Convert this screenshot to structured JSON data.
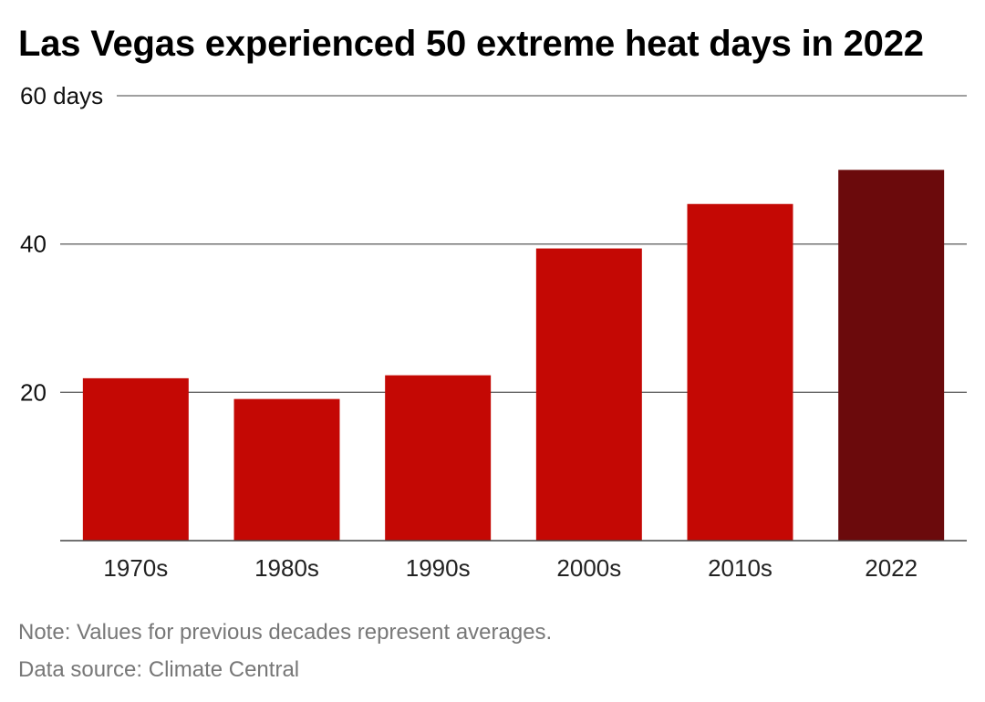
{
  "chart_data": {
    "type": "bar",
    "title": "Las Vegas experienced 50 extreme heat days in 2022",
    "categories": [
      "1970s",
      "1980s",
      "1990s",
      "2000s",
      "2010s",
      "2022"
    ],
    "series": [
      {
        "values": [
          21.9,
          19.1,
          22.3,
          39.4,
          45.4,
          50
        ]
      }
    ],
    "bar_colors": [
      "#c40804",
      "#c40804",
      "#c40804",
      "#c40804",
      "#c40804",
      "#6b0a0c"
    ],
    "ylim": [
      0,
      60
    ],
    "y_ticks": [
      20,
      40,
      60
    ],
    "y_tick_labels": [
      "20",
      "40",
      "60 days"
    ],
    "grid": true,
    "legend": "none",
    "xlabel": "",
    "ylabel": ""
  },
  "footer": {
    "note": "Note: Values for previous decades represent averages.",
    "source": "Data source: Climate Central"
  }
}
